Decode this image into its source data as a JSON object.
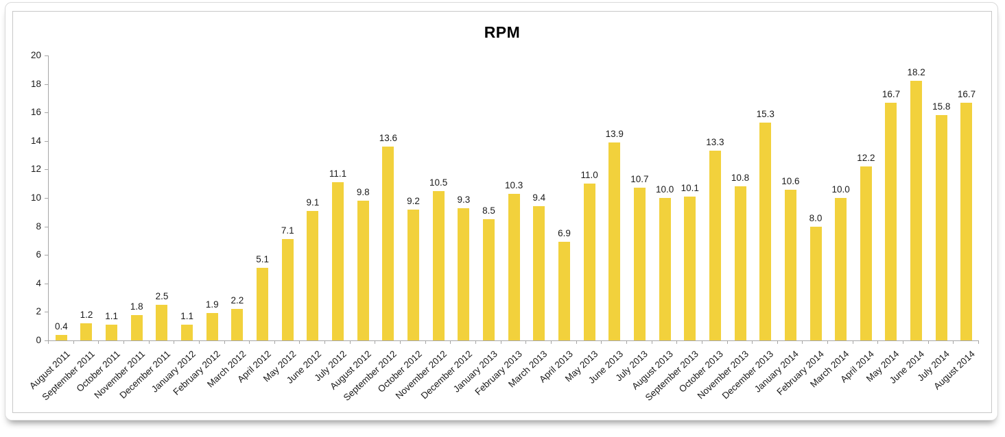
{
  "chart_data": {
    "type": "bar",
    "title": "RPM",
    "categories": [
      "August 2011",
      "September 2011",
      "October 2011",
      "November 2011",
      "December 2011",
      "January 2012",
      "February 2012",
      "March 2012",
      "April 2012",
      "May 2012",
      "June 2012",
      "July 2012",
      "August 2012",
      "September 2012",
      "October 2012",
      "November 2012",
      "December 2012",
      "January 2013",
      "February 2013",
      "March 2013",
      "April 2013",
      "May 2013",
      "June 2013",
      "July 2013",
      "August 2013",
      "September 2013",
      "October 2013",
      "November 2013",
      "December 2013",
      "January 2014",
      "February 2014",
      "March 2014",
      "April 2014",
      "May 2014",
      "June 2014",
      "July 2014",
      "August 2014"
    ],
    "values": [
      0.4,
      1.2,
      1.1,
      1.8,
      2.5,
      1.1,
      1.9,
      2.2,
      5.1,
      7.1,
      9.1,
      11.1,
      9.8,
      13.6,
      9.2,
      10.5,
      9.3,
      8.5,
      10.3,
      9.4,
      6.9,
      11.0,
      13.9,
      10.7,
      10.0,
      10.1,
      13.3,
      10.8,
      15.3,
      10.6,
      8.0,
      10.0,
      12.2,
      16.7,
      18.2,
      15.8,
      16.7
    ],
    "value_labels": [
      "0.4",
      "1.2",
      "1.1",
      "1.8",
      "2.5",
      "1.1",
      "1.9",
      "2.2",
      "5.1",
      "7.1",
      "9.1",
      "11.1",
      "9.8",
      "13.6",
      "9.2",
      "10.5",
      "9.3",
      "8.5",
      "10.3",
      "9.4",
      "6.9",
      "11.0",
      "13.9",
      "10.7",
      "10.0",
      "10.1",
      "13.3",
      "10.8",
      "15.3",
      "10.6",
      "8.0",
      "10.0",
      "12.2",
      "16.7",
      "18.2",
      "15.8",
      "16.7"
    ],
    "xlabel": "",
    "ylabel": "",
    "ylim": [
      0,
      20
    ],
    "ytick_step": 2,
    "ytick_labels": [
      "0",
      "2",
      "4",
      "6",
      "8",
      "10",
      "12",
      "14",
      "16",
      "18",
      "20"
    ],
    "grid": false,
    "legend": "none",
    "colors": {
      "bar": "#F2D13C",
      "axis": "#A5A5A5",
      "text": "#1A1A1A",
      "title": "#000000"
    }
  }
}
